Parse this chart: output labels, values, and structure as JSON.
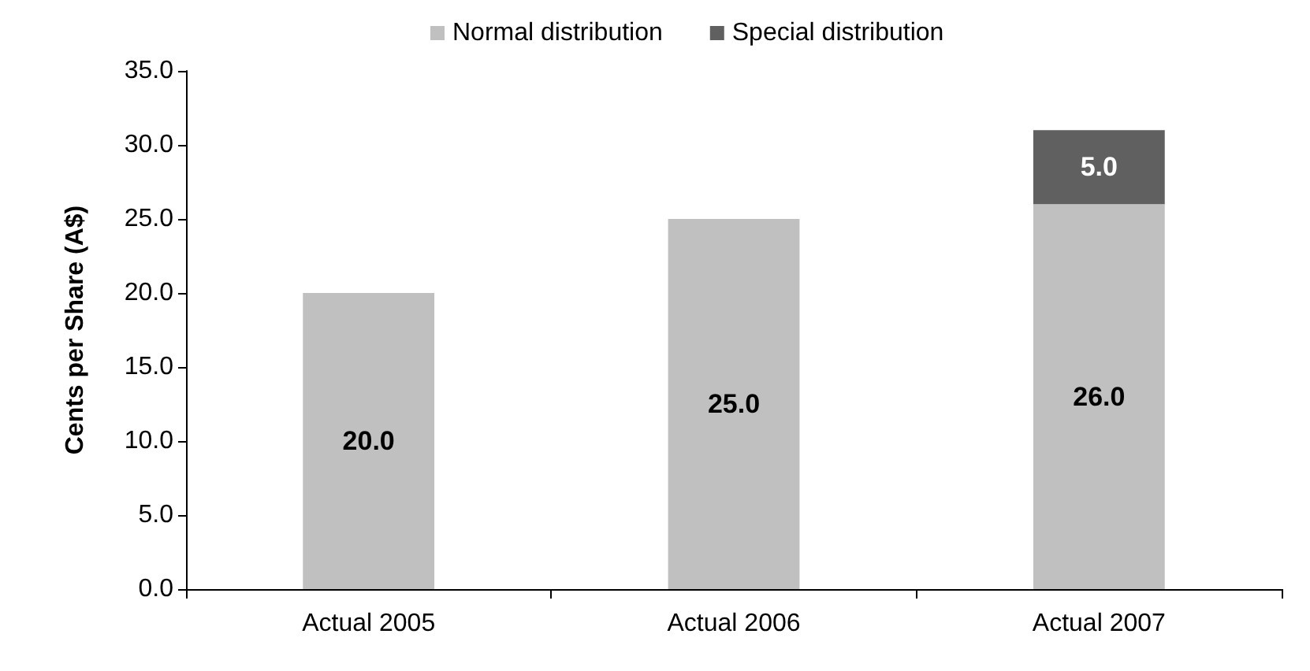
{
  "chart_data": {
    "type": "bar",
    "ylabel": "Cents per Share (A$)",
    "categories": [
      "Actual 2005",
      "Actual 2006",
      "Actual 2007"
    ],
    "stacked": true,
    "legend": "top",
    "grid": false,
    "series": [
      {
        "name": "Normal distribution",
        "color": "#c0c0c0",
        "values": [
          20,
          25,
          26
        ],
        "value_labels": [
          "20.0",
          "25.0",
          "26.0"
        ]
      },
      {
        "name": "Special distribution",
        "color": "#606060",
        "values": [
          null,
          null,
          5
        ],
        "value_labels": [
          null,
          null,
          "5.0"
        ]
      }
    ],
    "ylim": [
      0,
      35
    ],
    "yticks": [
      {
        "value": 0,
        "label": "0.0"
      },
      {
        "value": 5,
        "label": "5.0"
      },
      {
        "value": 10,
        "label": "10.0"
      },
      {
        "value": 15,
        "label": "15.0"
      },
      {
        "value": 20,
        "label": "20.0"
      },
      {
        "value": 25,
        "label": "25.0"
      },
      {
        "value": 30,
        "label": "30.0"
      },
      {
        "value": 35,
        "label": "35.0"
      }
    ]
  }
}
